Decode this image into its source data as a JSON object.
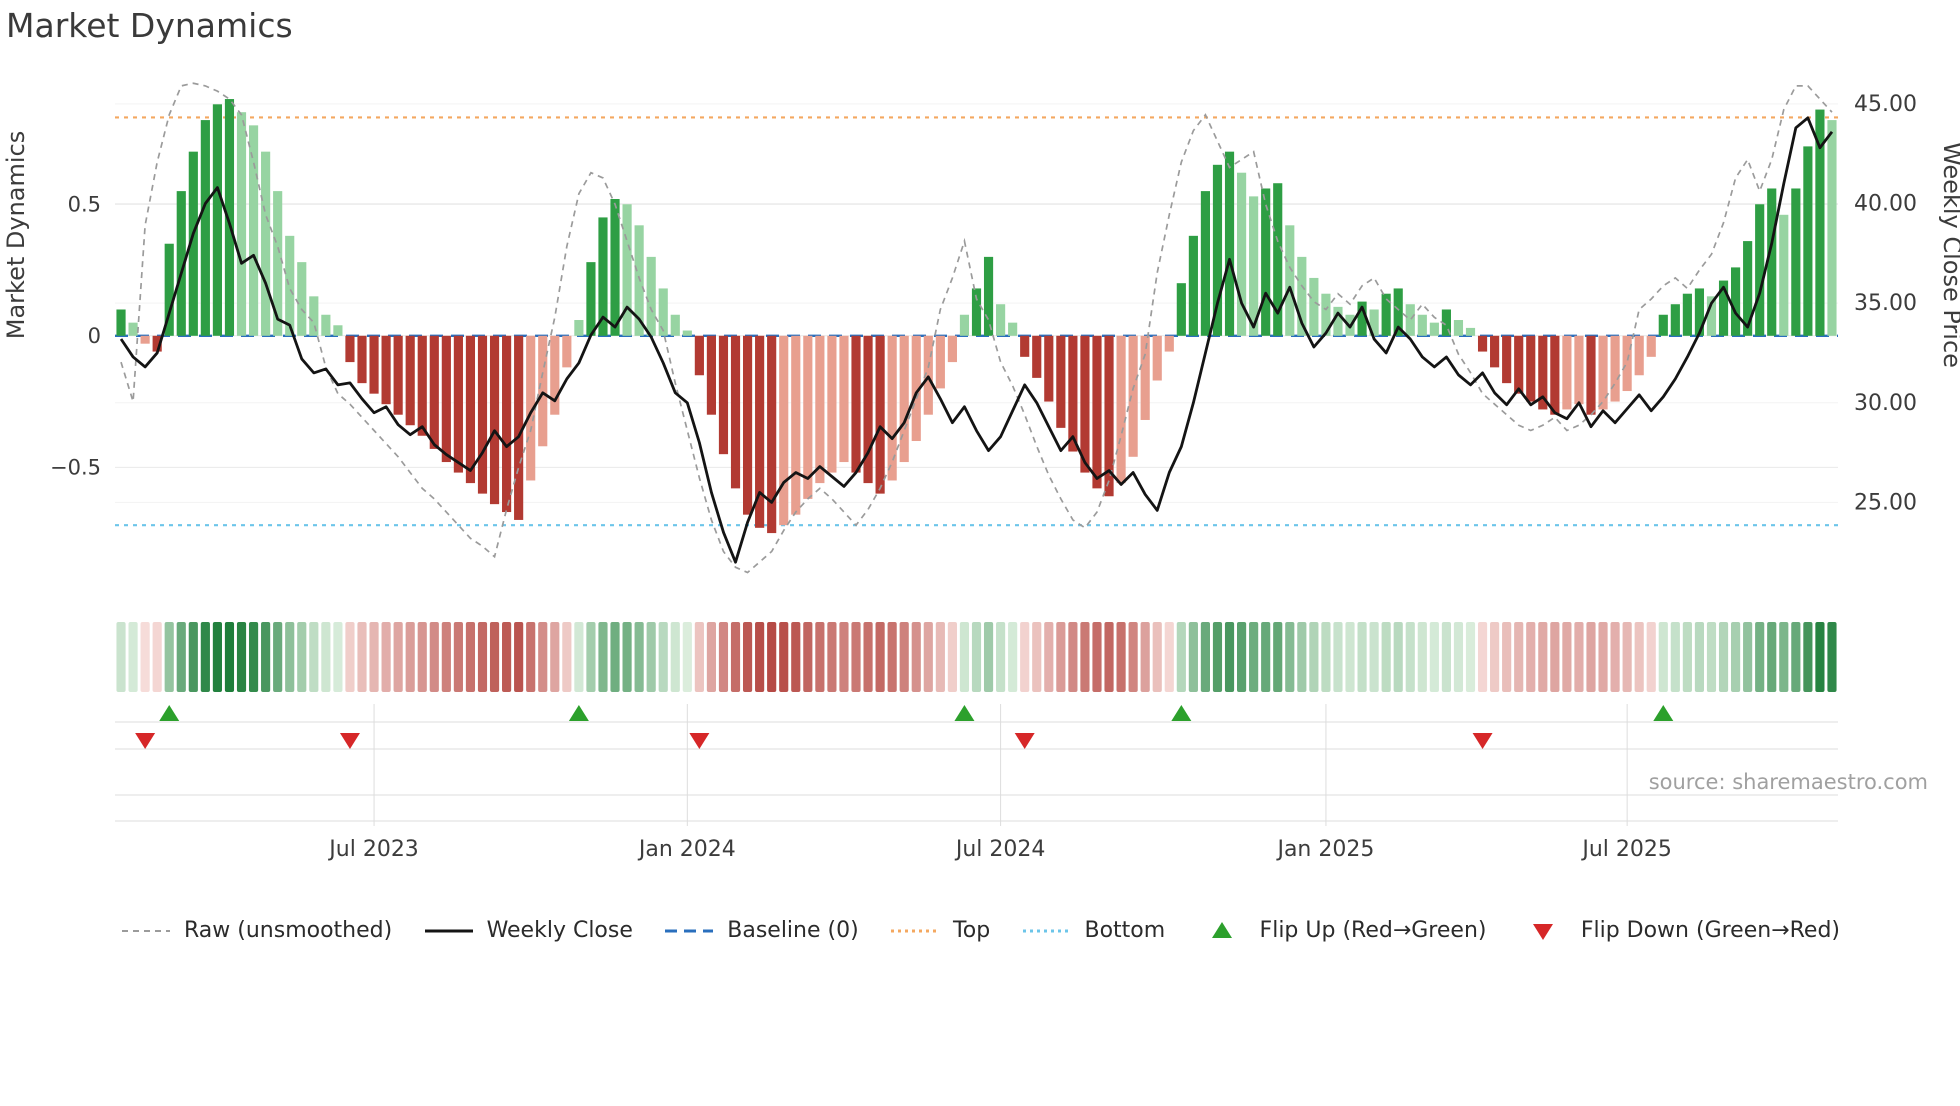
{
  "title": "Market Dynamics",
  "source": "source: sharemaestro.com",
  "colors": {
    "bar_green_dark": "#2e9e44",
    "bar_green_light": "#97d4a2",
    "bar_red_dark": "#b23a32",
    "bar_red_light": "#e89f8f",
    "raw_line": "#9b9b9b",
    "close_line": "#141414",
    "baseline": "#2a6fbd",
    "top_line": "#f4a860",
    "bottom_line": "#6cc5e9",
    "flip_up": "#2ca02c",
    "flip_down": "#d62728",
    "grid": "#e9e9e9",
    "panel_line": "#dddddd",
    "tick_text": "#3c3c3c"
  },
  "legend": [
    {
      "label": "Raw (unsmoothed)",
      "marker": "dash-gray"
    },
    {
      "label": "Weekly Close",
      "marker": "solid-black"
    },
    {
      "label": "Baseline (0)",
      "marker": "dash-blue"
    },
    {
      "label": "Top",
      "marker": "dot-orange"
    },
    {
      "label": "Bottom",
      "marker": "dot-cyan"
    },
    {
      "label": "Flip Up (Red→Green)",
      "marker": "tri-up"
    },
    {
      "label": "Flip Down (Green→Red)",
      "marker": "tri-down"
    }
  ],
  "chart_data": {
    "type": "bar",
    "subtype": "oscillator-with-price-overlay-heatmap-and-flip-markers",
    "title": "Market Dynamics",
    "x_unit": "week",
    "x_start_date_approx": "2023-02-06",
    "n_points": 143,
    "axes": {
      "left_label": "Market Dynamics",
      "right_label": "Weekly Close Price",
      "left_tick_values": [
        -0.5,
        0,
        0.5
      ],
      "left_tick_labels": [
        "−0.5",
        "0",
        "0.5"
      ],
      "right_tick_values": [
        25,
        30,
        35,
        40,
        45
      ],
      "right_tick_labels": [
        "25.00",
        "30.00",
        "35.00",
        "40.00",
        "45.00"
      ],
      "x_tick_labels": [
        "Jul 2023",
        "Jan 2024",
        "Jul 2024",
        "Jan 2025",
        "Jul 2025"
      ],
      "x_tick_indices": [
        21,
        47,
        73,
        100,
        125
      ],
      "left_range": [
        -1.05,
        0.98
      ],
      "right_range": [
        19.5,
        46.3
      ],
      "grid": true,
      "legend_position": "bottom"
    },
    "reference_lines": {
      "baseline": 0,
      "top": 0.83,
      "bottom": -0.72
    },
    "flip_up_indices": [
      4,
      38,
      70,
      88,
      128
    ],
    "flip_down_indices": [
      2,
      19,
      48,
      75,
      113
    ],
    "series": [
      {
        "name": "Market Dynamics (bars + heatmap)",
        "type": "bar",
        "axis": "left",
        "values": [
          0.1,
          0.05,
          -0.03,
          -0.06,
          0.35,
          0.55,
          0.7,
          0.82,
          0.88,
          0.9,
          0.85,
          0.8,
          0.7,
          0.55,
          0.38,
          0.28,
          0.15,
          0.08,
          0.04,
          -0.1,
          -0.18,
          -0.22,
          -0.26,
          -0.3,
          -0.34,
          -0.38,
          -0.43,
          -0.48,
          -0.52,
          -0.56,
          -0.6,
          -0.64,
          -0.67,
          -0.7,
          -0.55,
          -0.42,
          -0.3,
          -0.12,
          0.06,
          0.28,
          0.45,
          0.52,
          0.5,
          0.42,
          0.3,
          0.18,
          0.08,
          0.02,
          -0.15,
          -0.3,
          -0.45,
          -0.58,
          -0.68,
          -0.73,
          -0.75,
          -0.72,
          -0.68,
          -0.62,
          -0.56,
          -0.52,
          -0.48,
          -0.52,
          -0.56,
          -0.6,
          -0.55,
          -0.48,
          -0.4,
          -0.3,
          -0.2,
          -0.1,
          0.08,
          0.18,
          0.3,
          0.12,
          0.05,
          -0.08,
          -0.16,
          -0.25,
          -0.35,
          -0.44,
          -0.52,
          -0.58,
          -0.61,
          -0.56,
          -0.46,
          -0.32,
          -0.17,
          -0.06,
          0.2,
          0.38,
          0.55,
          0.65,
          0.7,
          0.62,
          0.53,
          0.56,
          0.58,
          0.42,
          0.3,
          0.22,
          0.16,
          0.11,
          0.08,
          0.13,
          0.1,
          0.16,
          0.18,
          0.12,
          0.08,
          0.05,
          0.1,
          0.06,
          0.03,
          -0.06,
          -0.12,
          -0.18,
          -0.22,
          -0.25,
          -0.28,
          -0.3,
          -0.28,
          -0.26,
          -0.3,
          -0.28,
          -0.25,
          -0.21,
          -0.15,
          -0.08,
          0.08,
          0.12,
          0.16,
          0.18,
          0.15,
          0.21,
          0.26,
          0.36,
          0.5,
          0.56,
          0.46,
          0.56,
          0.72,
          0.86,
          0.82
        ]
      },
      {
        "name": "Raw (unsmoothed)",
        "type": "line",
        "style": "dashed",
        "axis": "left",
        "values": [
          -0.1,
          -0.25,
          0.42,
          0.66,
          0.84,
          0.95,
          0.96,
          0.95,
          0.93,
          0.9,
          0.84,
          0.66,
          0.46,
          0.34,
          0.18,
          0.1,
          0.05,
          -0.12,
          -0.22,
          -0.26,
          -0.31,
          -0.36,
          -0.41,
          -0.46,
          -0.52,
          -0.58,
          -0.62,
          -0.67,
          -0.72,
          -0.77,
          -0.8,
          -0.84,
          -0.66,
          -0.5,
          -0.36,
          -0.14,
          0.07,
          0.34,
          0.54,
          0.62,
          0.6,
          0.5,
          0.36,
          0.22,
          0.1,
          0.02,
          -0.18,
          -0.36,
          -0.54,
          -0.7,
          -0.82,
          -0.88,
          -0.9,
          -0.86,
          -0.82,
          -0.74,
          -0.67,
          -0.62,
          -0.58,
          -0.62,
          -0.67,
          -0.72,
          -0.66,
          -0.58,
          -0.48,
          -0.36,
          -0.24,
          -0.12,
          0.1,
          0.22,
          0.36,
          0.14,
          0.06,
          -0.1,
          -0.19,
          -0.3,
          -0.42,
          -0.53,
          -0.62,
          -0.7,
          -0.73,
          -0.67,
          -0.55,
          -0.38,
          -0.2,
          -0.07,
          0.24,
          0.46,
          0.66,
          0.78,
          0.84,
          0.74,
          0.64,
          0.67,
          0.7,
          0.5,
          0.36,
          0.26,
          0.19,
          0.13,
          0.1,
          0.16,
          0.12,
          0.19,
          0.22,
          0.14,
          0.1,
          0.06,
          0.12,
          0.07,
          0.04,
          -0.07,
          -0.14,
          -0.22,
          -0.26,
          -0.3,
          -0.34,
          -0.36,
          -0.34,
          -0.31,
          -0.36,
          -0.34,
          -0.3,
          -0.25,
          -0.18,
          -0.1,
          0.1,
          0.14,
          0.19,
          0.22,
          0.18,
          0.25,
          0.31,
          0.43,
          0.6,
          0.67,
          0.55,
          0.67,
          0.86,
          0.95,
          0.95,
          0.9,
          0.85
        ]
      },
      {
        "name": "Weekly Close",
        "type": "line",
        "style": "solid",
        "axis": "right",
        "values": [
          33.2,
          32.3,
          31.8,
          32.5,
          34.5,
          36.5,
          38.5,
          40.0,
          40.8,
          39.0,
          37.0,
          37.4,
          36.0,
          34.2,
          33.9,
          32.2,
          31.5,
          31.7,
          30.9,
          31.0,
          30.2,
          29.5,
          29.8,
          28.9,
          28.4,
          28.8,
          27.9,
          27.4,
          27.0,
          26.6,
          27.5,
          28.6,
          27.8,
          28.3,
          29.5,
          30.5,
          30.1,
          31.2,
          32.0,
          33.4,
          34.3,
          33.8,
          34.8,
          34.2,
          33.3,
          32.0,
          30.5,
          30.0,
          28.0,
          25.5,
          23.5,
          22.0,
          24.0,
          25.5,
          25.0,
          26.0,
          26.5,
          26.2,
          26.8,
          26.3,
          25.8,
          26.5,
          27.5,
          28.8,
          28.2,
          29.0,
          30.5,
          31.3,
          30.2,
          29.0,
          29.8,
          28.6,
          27.6,
          28.3,
          29.6,
          30.9,
          30.0,
          28.8,
          27.6,
          28.3,
          27.0,
          26.2,
          26.6,
          25.9,
          26.5,
          25.4,
          24.6,
          26.5,
          27.8,
          30.0,
          32.5,
          35.0,
          37.2,
          35.0,
          33.8,
          35.5,
          34.5,
          35.8,
          34.0,
          32.8,
          33.5,
          34.5,
          33.8,
          34.8,
          33.2,
          32.5,
          33.8,
          33.2,
          32.3,
          31.8,
          32.3,
          31.4,
          30.9,
          31.5,
          30.5,
          29.9,
          30.7,
          29.9,
          30.3,
          29.5,
          29.2,
          30.0,
          28.8,
          29.6,
          29.0,
          29.7,
          30.4,
          29.6,
          30.3,
          31.2,
          32.3,
          33.5,
          35.0,
          35.8,
          34.5,
          33.8,
          35.5,
          38.0,
          41.0,
          43.8,
          44.3,
          42.8,
          43.6
        ]
      }
    ]
  }
}
